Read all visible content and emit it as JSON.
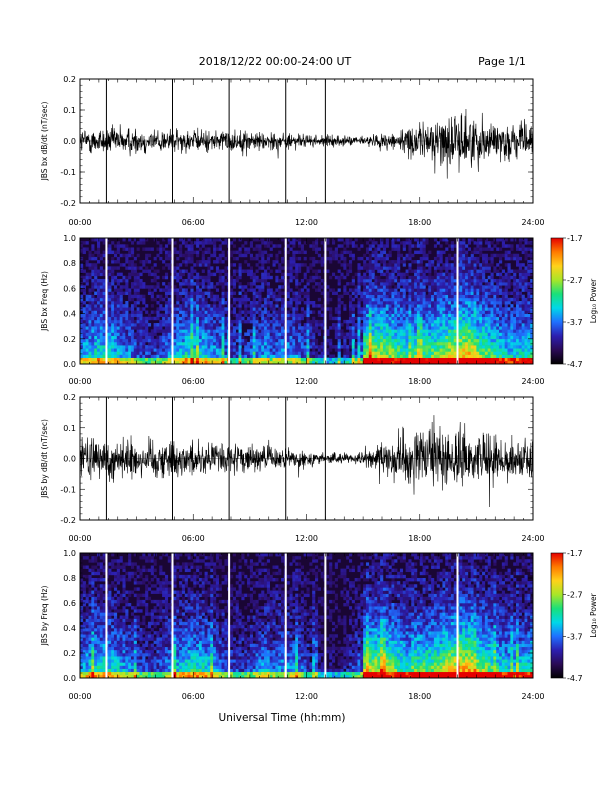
{
  "header": {
    "date_range": "2018/12/22  00:00-24:00 UT",
    "page": "Page 1/1"
  },
  "xlabel": "Universal Time (hh:mm)",
  "colors": {
    "trace": "#000000",
    "background": "#ffffff",
    "spectrogram_scale": [
      "#000000",
      "#2a0a55",
      "#2c1fb0",
      "#1f70ff",
      "#00d8e8",
      "#19e07a",
      "#a8e628",
      "#ffd21a",
      "#ff7a00",
      "#e60000"
    ]
  },
  "chart_data": [
    {
      "type": "line",
      "ylabel": "JBS bx dB/dt (nT/sec)",
      "xlim": [
        0,
        24
      ],
      "ylim": [
        -0.2,
        0.2
      ],
      "xticks": [
        "00:00",
        "06:00",
        "12:00",
        "18:00",
        "24:00"
      ],
      "yticks": [
        "-0.2",
        "-0.1",
        "0.0",
        "0.1",
        "0.2"
      ],
      "spikes_hours": [
        1.4,
        4.9,
        7.9,
        10.9,
        13.0
      ],
      "amplitude_envelope": {
        "x": [
          0,
          2,
          4,
          6,
          8,
          10,
          12,
          14,
          15,
          16,
          17,
          18,
          19,
          20,
          21,
          22,
          23,
          24
        ],
        "y": [
          0.05,
          0.06,
          0.05,
          0.045,
          0.045,
          0.04,
          0.025,
          0.02,
          0.02,
          0.03,
          0.05,
          0.07,
          0.1,
          0.12,
          0.1,
          0.08,
          0.07,
          0.06
        ]
      }
    },
    {
      "type": "heatmap",
      "ylabel": "JBS bx Freq (Hz)",
      "xlim": [
        0,
        24
      ],
      "ylim": [
        0,
        1
      ],
      "xticks": [
        "00:00",
        "06:00",
        "12:00",
        "18:00",
        "24:00"
      ],
      "yticks": [
        "0.0",
        "0.2",
        "0.4",
        "0.6",
        "0.8",
        "1.0"
      ],
      "colorbar": {
        "label": "Log₁₀ Power",
        "ticks": [
          "-1.7",
          "-2.7",
          "-3.7",
          "-4.7"
        ],
        "range": [
          -4.7,
          -1.7
        ]
      },
      "gaps_hours": [
        1.4,
        4.9,
        7.9,
        10.9,
        13.0,
        20.0
      ]
    },
    {
      "type": "line",
      "ylabel": "JBS by dB/dt (nT/sec)",
      "xlim": [
        0,
        24
      ],
      "ylim": [
        -0.2,
        0.2
      ],
      "xticks": [
        "00:00",
        "06:00",
        "12:00",
        "18:00",
        "24:00"
      ],
      "yticks": [
        "-0.2",
        "-0.1",
        "0.0",
        "0.1",
        "0.2"
      ],
      "spikes_hours": [
        1.4,
        4.9,
        7.9,
        10.9,
        13.0
      ],
      "amplitude_envelope": {
        "x": [
          0,
          2,
          4,
          6,
          8,
          10,
          12,
          14,
          15,
          16,
          17,
          18,
          19,
          20,
          21,
          22,
          23,
          24
        ],
        "y": [
          0.08,
          0.09,
          0.08,
          0.07,
          0.06,
          0.05,
          0.03,
          0.02,
          0.025,
          0.06,
          0.1,
          0.12,
          0.13,
          0.12,
          0.1,
          0.09,
          0.09,
          0.08
        ]
      }
    },
    {
      "type": "heatmap",
      "ylabel": "JBS by Freq (Hz)",
      "xlim": [
        0,
        24
      ],
      "ylim": [
        0,
        1
      ],
      "xticks": [
        "00:00",
        "06:00",
        "12:00",
        "18:00",
        "24:00"
      ],
      "yticks": [
        "0.0",
        "0.2",
        "0.4",
        "0.6",
        "0.8",
        "1.0"
      ],
      "colorbar": {
        "label": "Log₁₀ Power",
        "ticks": [
          "-1.7",
          "-2.7",
          "-3.7",
          "-4.7"
        ],
        "range": [
          -4.7,
          -1.7
        ]
      },
      "gaps_hours": [
        1.4,
        4.9,
        7.9,
        10.9,
        13.0,
        20.0
      ]
    }
  ]
}
